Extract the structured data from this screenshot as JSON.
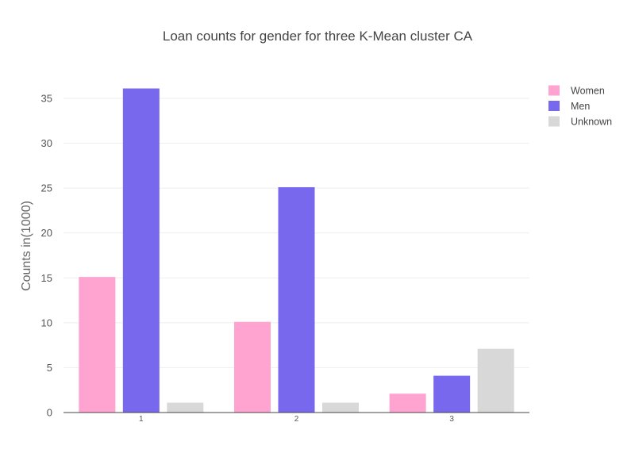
{
  "chart_data": {
    "type": "bar",
    "title": "Loan counts for gender for three K-Mean cluster CA",
    "xlabel": "",
    "ylabel": "Counts in(1000)",
    "categories": [
      "1",
      "2",
      "3"
    ],
    "series": [
      {
        "name": "Women",
        "color": "#ffa3d0",
        "values": [
          15.1,
          10.1,
          2.1
        ]
      },
      {
        "name": "Men",
        "color": "#7868ee",
        "values": [
          36.1,
          25.1,
          4.1
        ]
      },
      {
        "name": "Unknown",
        "color": "#d8d8d8",
        "values": [
          1.1,
          1.1,
          7.1
        ]
      }
    ],
    "yticks": [
      0,
      5,
      10,
      15,
      20,
      25,
      30,
      35
    ],
    "ylim": [
      0,
      38
    ],
    "grid": true,
    "legend_position": "top-right"
  }
}
